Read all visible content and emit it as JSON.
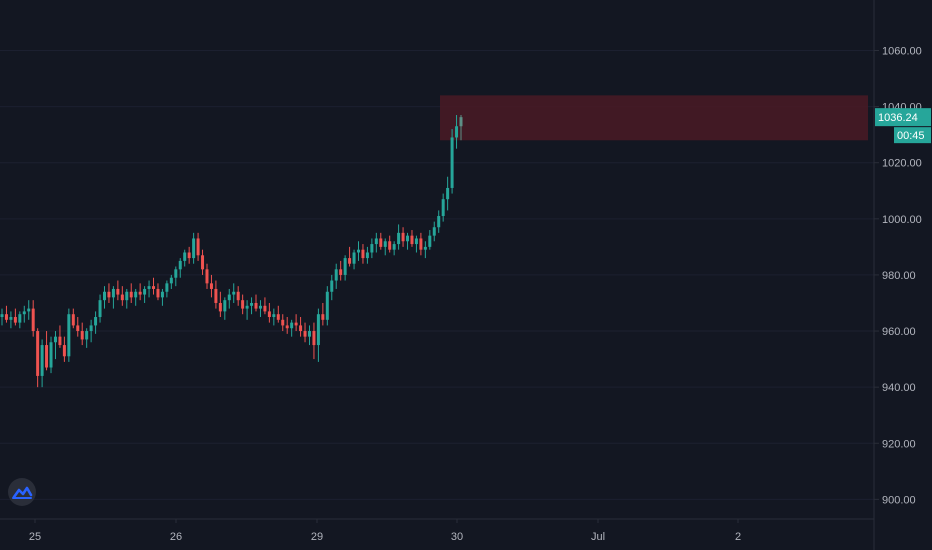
{
  "chart_data": {
    "type": "candlestick",
    "x_tick_labels": [
      "25",
      "26",
      "29",
      "30",
      "Jul",
      "2"
    ],
    "y_tick_labels": [
      "1060.00",
      "1040.00",
      "1020.00",
      "1000.00",
      "980.00",
      "960.00",
      "940.00",
      "920.00",
      "900.00"
    ],
    "ylim": [
      893,
      1078
    ],
    "last_price": "1036.24",
    "countdown": "00:45",
    "zone": {
      "low": 1028,
      "high": 1044
    },
    "colors": {
      "background": "#131722",
      "up": "#26a69a",
      "down": "#ef5350",
      "zone": "#4a1a24",
      "price_badge": "#26a69a",
      "axis_line": "#2a2e39",
      "text": "#b2b5be"
    },
    "candles": [
      [
        965,
        968,
        962,
        966
      ],
      [
        966,
        969,
        963,
        964
      ],
      [
        964,
        967,
        961,
        965
      ],
      [
        965,
        968,
        962,
        963
      ],
      [
        963,
        967,
        961,
        966
      ],
      [
        966,
        969,
        963,
        967
      ],
      [
        967,
        971,
        964,
        968
      ],
      [
        968,
        971,
        958,
        960
      ],
      [
        960,
        961,
        940,
        944
      ],
      [
        944,
        957,
        940,
        955
      ],
      [
        955,
        960,
        946,
        947
      ],
      [
        947,
        958,
        945,
        956
      ],
      [
        956,
        960,
        950,
        958
      ],
      [
        958,
        962,
        954,
        955
      ],
      [
        955,
        958,
        949,
        951
      ],
      [
        951,
        968,
        949,
        966
      ],
      [
        966,
        968,
        961,
        962
      ],
      [
        962,
        965,
        958,
        960
      ],
      [
        960,
        963,
        955,
        957
      ],
      [
        957,
        961,
        954,
        960
      ],
      [
        960,
        964,
        956,
        962
      ],
      [
        962,
        967,
        959,
        965
      ],
      [
        965,
        973,
        963,
        971
      ],
      [
        971,
        976,
        968,
        974
      ],
      [
        974,
        977,
        970,
        972
      ],
      [
        972,
        976,
        968,
        975
      ],
      [
        975,
        978,
        971,
        973
      ],
      [
        973,
        976,
        969,
        971
      ],
      [
        971,
        975,
        968,
        974
      ],
      [
        974,
        977,
        970,
        972
      ],
      [
        972,
        975,
        969,
        974
      ],
      [
        974,
        977,
        971,
        973
      ],
      [
        973,
        976,
        970,
        975
      ],
      [
        975,
        978,
        972,
        976
      ],
      [
        976,
        979,
        973,
        975
      ],
      [
        975,
        977,
        971,
        972
      ],
      [
        972,
        975,
        969,
        974
      ],
      [
        974,
        978,
        972,
        977
      ],
      [
        977,
        980,
        975,
        979
      ],
      [
        979,
        983,
        976,
        982
      ],
      [
        982,
        986,
        979,
        985
      ],
      [
        985,
        989,
        983,
        988
      ],
      [
        988,
        990,
        984,
        986
      ],
      [
        986,
        995,
        984,
        993
      ],
      [
        993,
        995,
        985,
        987
      ],
      [
        987,
        989,
        980,
        982
      ],
      [
        982,
        984,
        975,
        977
      ],
      [
        977,
        980,
        972,
        975
      ],
      [
        975,
        978,
        968,
        970
      ],
      [
        970,
        974,
        965,
        967
      ],
      [
        967,
        972,
        964,
        971
      ],
      [
        971,
        975,
        968,
        973
      ],
      [
        973,
        977,
        970,
        974
      ],
      [
        974,
        976,
        969,
        971
      ],
      [
        971,
        973,
        966,
        968
      ],
      [
        968,
        971,
        964,
        969
      ],
      [
        969,
        972,
        966,
        970
      ],
      [
        970,
        973,
        967,
        968
      ],
      [
        968,
        971,
        965,
        969
      ],
      [
        969,
        972,
        966,
        967
      ],
      [
        967,
        970,
        963,
        965
      ],
      [
        965,
        968,
        962,
        966
      ],
      [
        966,
        969,
        963,
        964
      ],
      [
        964,
        966,
        960,
        962
      ],
      [
        962,
        965,
        959,
        961
      ],
      [
        961,
        964,
        958,
        963
      ],
      [
        963,
        966,
        960,
        962
      ],
      [
        962,
        965,
        958,
        960
      ],
      [
        960,
        963,
        956,
        958
      ],
      [
        958,
        962,
        955,
        960
      ],
      [
        960,
        963,
        950,
        955
      ],
      [
        955,
        968,
        949,
        966
      ],
      [
        966,
        970,
        962,
        964
      ],
      [
        964,
        976,
        962,
        974
      ],
      [
        974,
        980,
        971,
        978
      ],
      [
        978,
        984,
        975,
        982
      ],
      [
        982,
        985,
        978,
        980
      ],
      [
        980,
        987,
        978,
        986
      ],
      [
        986,
        990,
        983,
        984
      ],
      [
        984,
        989,
        982,
        988
      ],
      [
        988,
        992,
        985,
        989
      ],
      [
        989,
        991,
        984,
        986
      ],
      [
        986,
        990,
        984,
        988
      ],
      [
        988,
        993,
        986,
        991
      ],
      [
        991,
        995,
        988,
        993
      ],
      [
        993,
        995,
        989,
        990
      ],
      [
        990,
        993,
        987,
        992
      ],
      [
        992,
        994,
        988,
        989
      ],
      [
        989,
        992,
        987,
        991
      ],
      [
        991,
        998,
        989,
        995
      ],
      [
        995,
        997,
        990,
        992
      ],
      [
        992,
        995,
        989,
        994
      ],
      [
        994,
        996,
        990,
        991
      ],
      [
        991,
        994,
        988,
        993
      ],
      [
        993,
        995,
        987,
        989
      ],
      [
        989,
        992,
        986,
        990
      ],
      [
        990,
        996,
        989,
        994
      ],
      [
        994,
        999,
        992,
        997
      ],
      [
        997,
        1003,
        995,
        1001
      ],
      [
        1001,
        1009,
        999,
        1007
      ],
      [
        1007,
        1015,
        1003,
        1011
      ],
      [
        1011,
        1032,
        1009,
        1029
      ],
      [
        1029,
        1037,
        1025,
        1033
      ],
      [
        1033,
        1037,
        1028,
        1036.24
      ]
    ]
  },
  "logo": {
    "icon": "tradingview-logo-icon"
  }
}
